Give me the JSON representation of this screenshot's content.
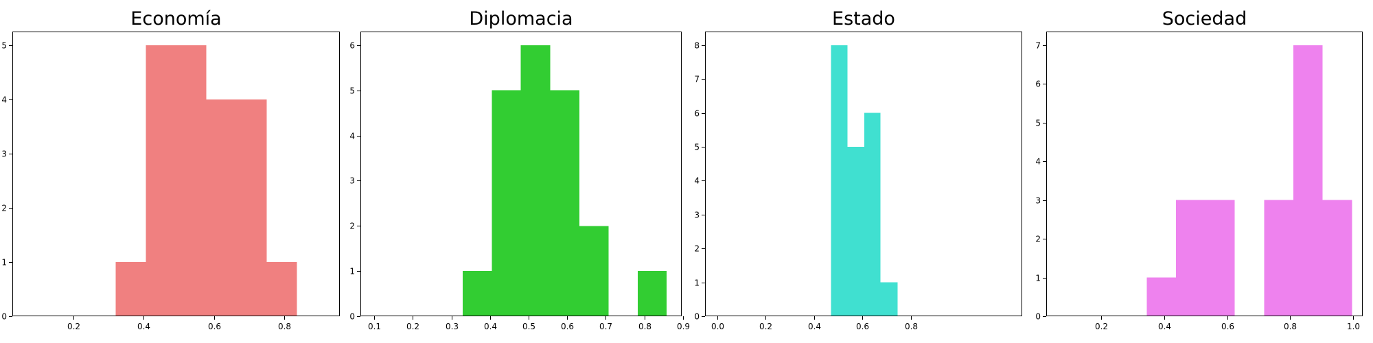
{
  "chart_data": [
    {
      "type": "bar",
      "title": "Economía",
      "color": "#f08080",
      "xlim": [
        0.026,
        0.958
      ],
      "ylim": [
        0,
        5.25
      ],
      "xticks": [
        0.2,
        0.4,
        0.6,
        0.8
      ],
      "xtick_labels": [
        "0.2",
        "0.4",
        "0.6",
        "0.8"
      ],
      "yticks": [
        0,
        1,
        2,
        3,
        4,
        5
      ],
      "ytick_labels": [
        "0",
        "1",
        "2",
        "3",
        "4",
        "5"
      ],
      "bins": [
        {
          "x0": 0.32,
          "x1": 0.406,
          "count": 1
        },
        {
          "x0": 0.406,
          "x1": 0.492,
          "count": 5
        },
        {
          "x0": 0.492,
          "x1": 0.578,
          "count": 5
        },
        {
          "x0": 0.578,
          "x1": 0.664,
          "count": 4
        },
        {
          "x0": 0.664,
          "x1": 0.75,
          "count": 4
        },
        {
          "x0": 0.75,
          "x1": 0.836,
          "count": 1
        }
      ]
    },
    {
      "type": "bar",
      "title": "Diplomacia",
      "color": "#32cd32",
      "xlim": [
        0.064,
        0.897
      ],
      "ylim": [
        0,
        6.3
      ],
      "xticks": [
        0.1,
        0.2,
        0.3,
        0.4,
        0.5,
        0.6,
        0.7,
        0.8,
        0.9
      ],
      "xtick_labels": [
        "0.1",
        "0.2",
        "0.3",
        "0.4",
        "0.5",
        "0.6",
        "0.7",
        "0.8",
        "0.9"
      ],
      "yticks": [
        0,
        1,
        2,
        3,
        4,
        5,
        6
      ],
      "ytick_labels": [
        "0",
        "1",
        "2",
        "3",
        "4",
        "5",
        "6"
      ],
      "bins": [
        {
          "x0": 0.329,
          "x1": 0.405,
          "count": 1
        },
        {
          "x0": 0.405,
          "x1": 0.48,
          "count": 5
        },
        {
          "x0": 0.48,
          "x1": 0.556,
          "count": 6
        },
        {
          "x0": 0.556,
          "x1": 0.632,
          "count": 5
        },
        {
          "x0": 0.632,
          "x1": 0.707,
          "count": 2
        },
        {
          "x0": 0.707,
          "x1": 0.783,
          "count": 0
        },
        {
          "x0": 0.783,
          "x1": 0.858,
          "count": 1
        }
      ]
    },
    {
      "type": "bar",
      "title": "Estado",
      "color": "#40e0d0",
      "xlim": [
        -0.05,
        1.26
      ],
      "ylim": [
        0,
        8.4
      ],
      "xticks": [
        0.0,
        0.2,
        0.4,
        0.6,
        0.8
      ],
      "xtick_labels": [
        "0.0",
        "0.2",
        "0.4",
        "0.6",
        "0.8"
      ],
      "yticks": [
        0,
        1,
        2,
        3,
        4,
        5,
        6,
        7,
        8
      ],
      "ytick_labels": [
        "0",
        "1",
        "2",
        "3",
        "4",
        "5",
        "6",
        "7",
        "8"
      ],
      "bins": [
        {
          "x0": 0.47,
          "x1": 0.538,
          "count": 8
        },
        {
          "x0": 0.538,
          "x1": 0.608,
          "count": 5
        },
        {
          "x0": 0.608,
          "x1": 0.675,
          "count": 6
        },
        {
          "x0": 0.675,
          "x1": 0.745,
          "count": 1
        }
      ]
    },
    {
      "type": "bar",
      "title": "Sociedad",
      "color": "#ee82ee",
      "xlim": [
        0.026,
        1.03
      ],
      "ylim": [
        0,
        7.35
      ],
      "xticks": [
        0.2,
        0.4,
        0.6,
        0.8,
        1.0
      ],
      "xtick_labels": [
        "0.2",
        "0.4",
        "0.6",
        "0.8",
        "1.0"
      ],
      "yticks": [
        0,
        1,
        2,
        3,
        4,
        5,
        6,
        7
      ],
      "ytick_labels": [
        "0",
        "1",
        "2",
        "3",
        "4",
        "5",
        "6",
        "7"
      ],
      "bins": [
        {
          "x0": 0.345,
          "x1": 0.438,
          "count": 1
        },
        {
          "x0": 0.438,
          "x1": 0.531,
          "count": 3
        },
        {
          "x0": 0.531,
          "x1": 0.624,
          "count": 3
        },
        {
          "x0": 0.624,
          "x1": 0.717,
          "count": 0
        },
        {
          "x0": 0.717,
          "x1": 0.81,
          "count": 3
        },
        {
          "x0": 0.81,
          "x1": 0.903,
          "count": 7
        },
        {
          "x0": 0.903,
          "x1": 0.996,
          "count": 3
        }
      ]
    }
  ]
}
